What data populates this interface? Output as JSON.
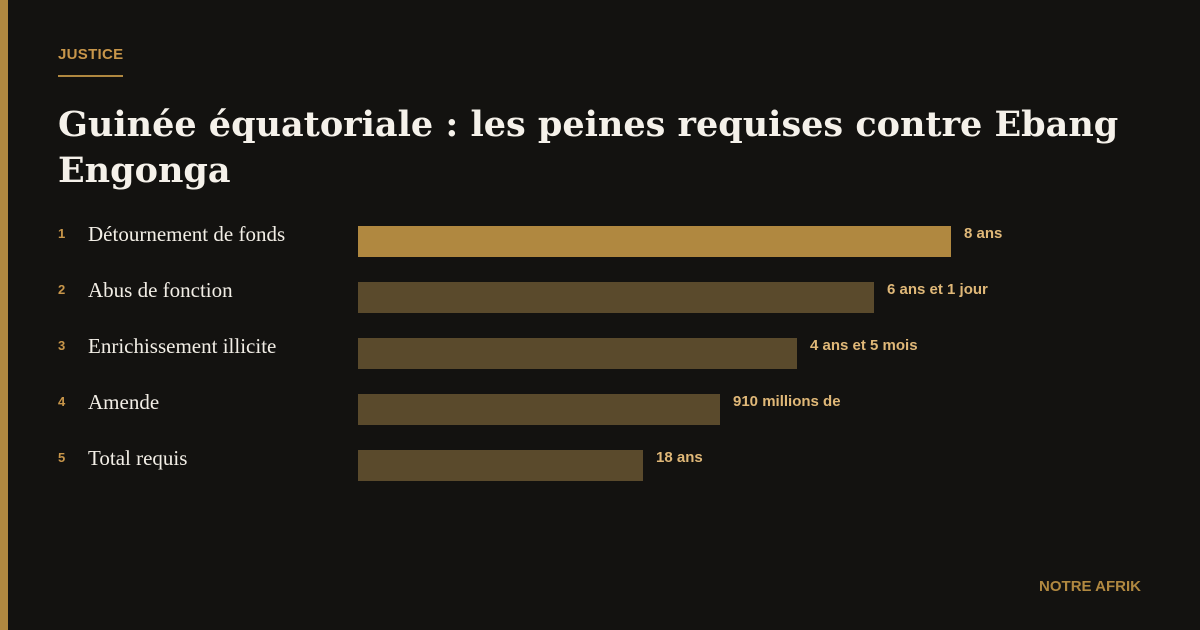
{
  "kicker": "JUSTICE",
  "title": "Guinée équatoriale : les peines requises contre Ebang Engonga",
  "items": [
    {
      "rank": 1,
      "label": "Détournement de fonds",
      "value": "8 ans"
    },
    {
      "rank": 2,
      "label": "Abus de fonction",
      "value": "6 ans et 1 jour"
    },
    {
      "rank": 3,
      "label": "Enrichissement illicite",
      "value": "4 ans et 5 mois"
    },
    {
      "rank": 4,
      "label": "Amende",
      "value": "910 millions de"
    },
    {
      "rank": 5,
      "label": "Total requis",
      "value": "18 ans"
    }
  ],
  "footer": "NOTRE AFRIK"
}
